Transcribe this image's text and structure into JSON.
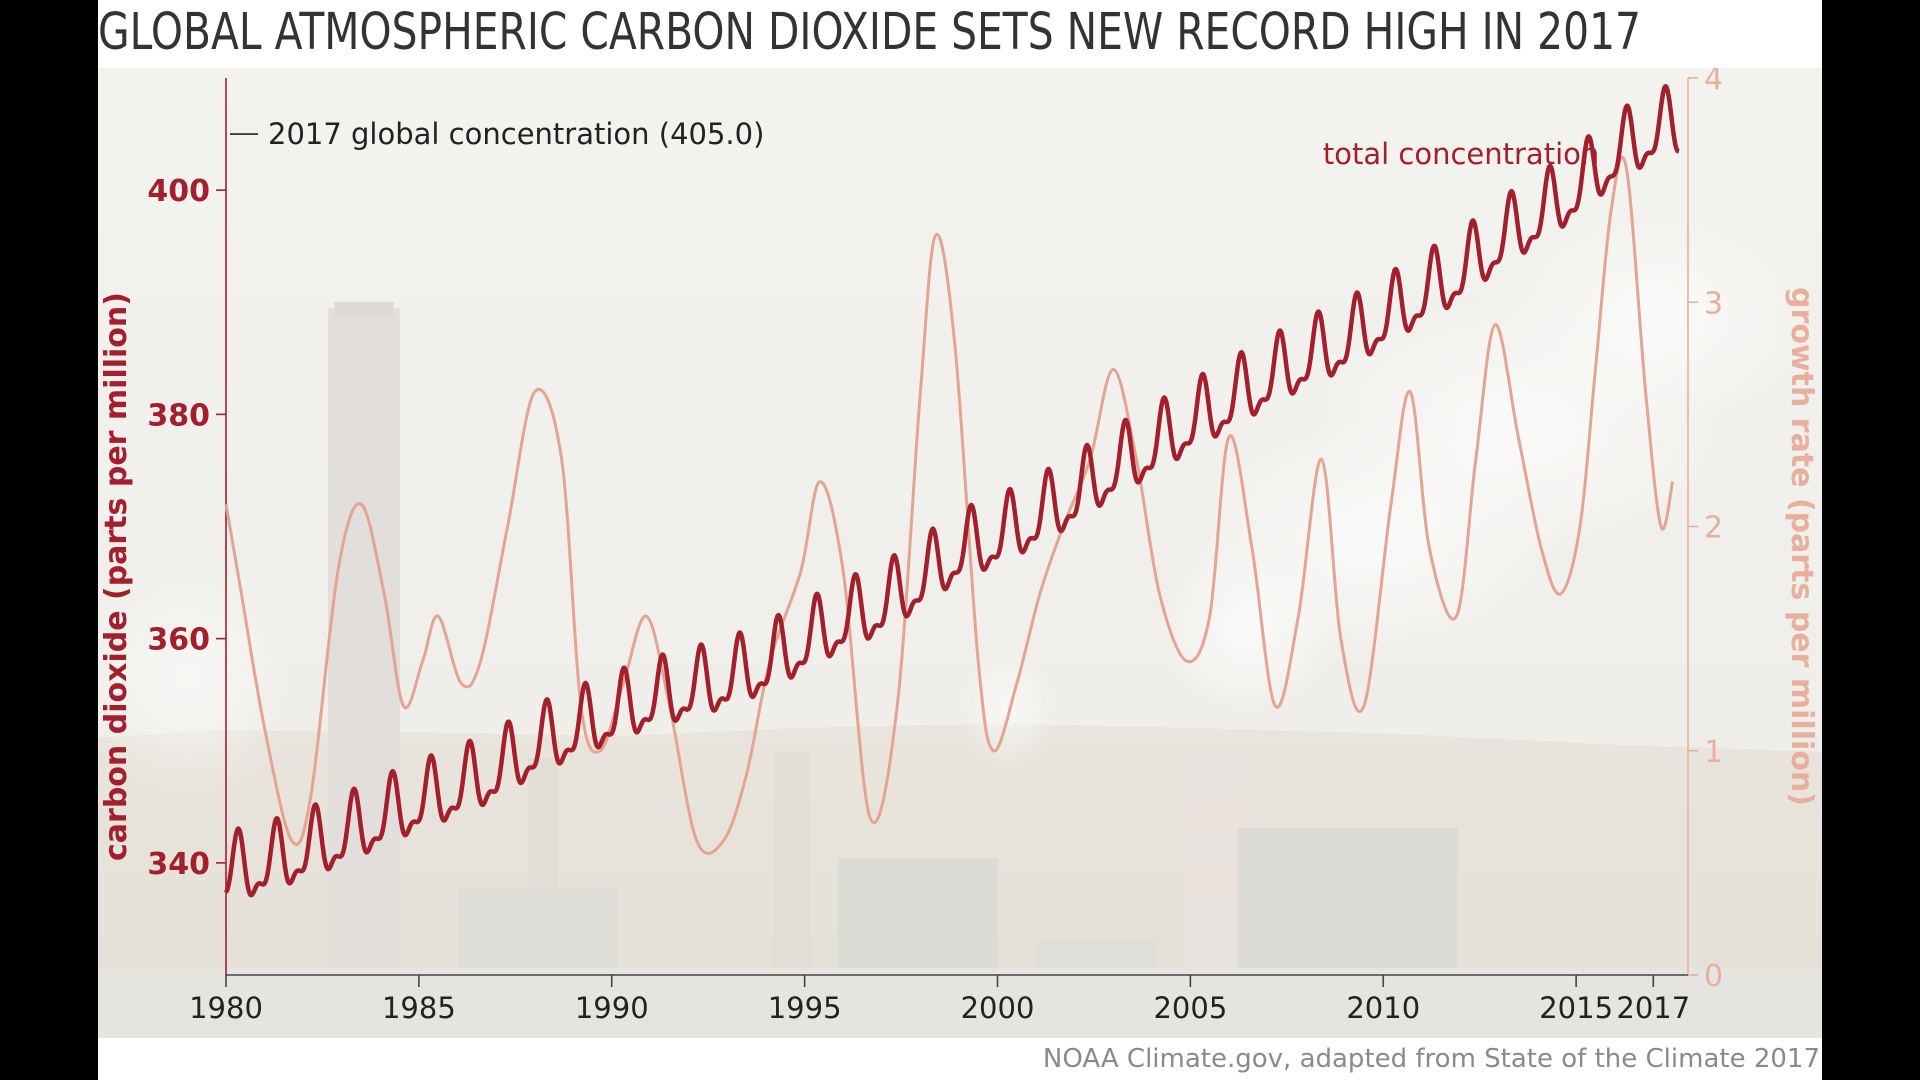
{
  "title": "GLOBAL ATMOSPHERIC CARBON DIOXIDE SETS NEW RECORD HIGH IN 2017",
  "credit": "NOAA Climate.gov, adapted from State of the Climate 2017",
  "colors": {
    "concentration": "#a31f2c",
    "growth": "#e3a591",
    "left_axis": "#a31f2c",
    "right_axis": "#e8b09c",
    "text": "#222222",
    "background_photo": "industrial power plant with smokestacks"
  },
  "chart_data": {
    "type": "line",
    "title": "GLOBAL ATMOSPHERIC CARBON DIOXIDE SETS NEW RECORD HIGH IN 2017",
    "xlabel": "",
    "ylabel": "carbon dioxide (parts per million)",
    "ylabel_right": "growth rate (parts per million)",
    "xlim": [
      1980,
      2017.9
    ],
    "ylim": [
      330,
      410
    ],
    "ylim_right": [
      0,
      4
    ],
    "x_ticks": [
      1980,
      1985,
      1990,
      1995,
      2000,
      2005,
      2010,
      2015,
      2017
    ],
    "y_ticks": [
      340,
      360,
      380,
      400
    ],
    "y_ticks_right": [
      0,
      1,
      2,
      3,
      4
    ],
    "grid": false,
    "annotations": [
      {
        "text": "2017 global concentration (405.0)",
        "y": 405.0
      },
      {
        "text": "total concentration",
        "series": "concentration"
      }
    ],
    "series": [
      {
        "name": "total concentration",
        "axis": "left",
        "seasonal": true,
        "seasonal_amplitude": 2.7,
        "x": [
          1980,
          1981,
          1982,
          1983,
          1984,
          1985,
          1986,
          1987,
          1988,
          1989,
          1990,
          1991,
          1992,
          1993,
          1994,
          1995,
          1996,
          1997,
          1998,
          1999,
          2000,
          2001,
          2002,
          2003,
          2004,
          2005,
          2006,
          2007,
          2008,
          2009,
          2010,
          2011,
          2012,
          2013,
          2014,
          2015,
          2016,
          2017,
          2017.7
        ],
        "values": [
          338.9,
          339.7,
          340.9,
          342.2,
          343.8,
          345.3,
          346.5,
          348.0,
          350.2,
          351.7,
          353.1,
          354.4,
          355.3,
          356.2,
          357.6,
          359.5,
          361.4,
          362.8,
          365.1,
          367.6,
          368.9,
          370.6,
          372.6,
          375.0,
          376.9,
          379.1,
          381.0,
          383.0,
          384.8,
          386.3,
          388.4,
          390.5,
          392.5,
          395.3,
          397.5,
          399.9,
          403.0,
          405.0,
          405.8
        ]
      },
      {
        "name": "growth rate",
        "axis": "right",
        "x": [
          1980,
          1980.4,
          1981,
          1981.7,
          1982.2,
          1982.9,
          1983.5,
          1984.1,
          1984.6,
          1985.1,
          1985.5,
          1986.1,
          1986.6,
          1987.3,
          1988.0,
          1988.7,
          1989.2,
          1989.7,
          1990.3,
          1990.9,
          1991.5,
          1992.2,
          1992.9,
          1993.5,
          1994.1,
          1994.9,
          1995.4,
          1996.0,
          1996.7,
          1997.4,
          1998.0,
          1998.4,
          1998.9,
          1999.5,
          1999.9,
          2000.5,
          2001.1,
          2001.7,
          2002.4,
          2003.0,
          2003.6,
          2004.2,
          2004.9,
          2005.5,
          2006.0,
          2006.6,
          2007.2,
          2007.8,
          2008.4,
          2008.9,
          2009.5,
          2010.2,
          2010.7,
          2011.2,
          2011.9,
          2012.4,
          2012.9,
          2013.5,
          2014.1,
          2014.6,
          2015.1,
          2015.5,
          2015.9,
          2016.3,
          2016.8,
          2017.2,
          2017.5
        ],
        "values": [
          2.1,
          1.7,
          1.1,
          0.6,
          0.8,
          1.8,
          2.1,
          1.7,
          1.2,
          1.4,
          1.6,
          1.3,
          1.4,
          2.0,
          2.6,
          2.3,
          1.2,
          1.0,
          1.3,
          1.6,
          1.2,
          0.6,
          0.6,
          0.9,
          1.4,
          1.8,
          2.2,
          1.8,
          0.7,
          1.2,
          2.6,
          3.3,
          2.8,
          1.4,
          1.0,
          1.3,
          1.7,
          2.0,
          2.3,
          2.7,
          2.3,
          1.7,
          1.4,
          1.6,
          2.4,
          1.9,
          1.2,
          1.6,
          2.3,
          1.5,
          1.2,
          2.1,
          2.6,
          1.9,
          1.6,
          2.3,
          2.9,
          2.4,
          1.9,
          1.7,
          2.0,
          2.7,
          3.4,
          3.6,
          2.6,
          2.0,
          2.2
        ]
      }
    ]
  }
}
